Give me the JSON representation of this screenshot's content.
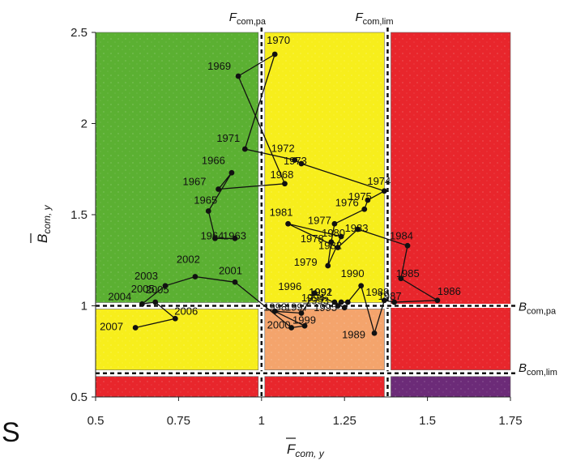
{
  "chart_data": {
    "type": "scatter",
    "title": "",
    "xlabel": {
      "main": "F",
      "sub": "com, y"
    },
    "ylabel": {
      "main": "B",
      "sub": "com, y"
    },
    "xlim": [
      0.5,
      1.75
    ],
    "ylim": [
      0.5,
      2.5
    ],
    "x_ticks": [
      "0.5",
      "0.75",
      "1",
      "1.25",
      "1.5",
      "1.75"
    ],
    "y_ticks": [
      "0.5",
      "1",
      "1.5",
      "2",
      "2.5"
    ],
    "reference_lines": {
      "F_com_pa": {
        "value": 1.0,
        "main": "F",
        "sub": "com,pa"
      },
      "F_com_lim": {
        "value": 1.38,
        "main": "F",
        "sub": "com,lim"
      },
      "B_com_pa": {
        "value": 1.0,
        "main": "B",
        "sub": "com,pa"
      },
      "B_com_lim": {
        "value": 0.63,
        "main": "B",
        "sub": "com,lim"
      }
    },
    "zones": [
      {
        "region": "F<Fpa, B>Bpa",
        "color": "#5bb032"
      },
      {
        "region": "F<Fpa, Blim<B<Bpa",
        "color": "#f7ee1c"
      },
      {
        "region": "F<Fpa, B<Blim",
        "color": "#e8262c"
      },
      {
        "region": "Fpa<F<Flim, B>Bpa",
        "color": "#f7ee1c"
      },
      {
        "region": "Fpa<F<Flim, Blim<B<Bpa",
        "color": "#f4a46c"
      },
      {
        "region": "Fpa<F<Flim, B<Blim",
        "color": "#e8262c"
      },
      {
        "region": "F>Flim, B>Blim",
        "color": "#e8262c"
      },
      {
        "region": "F>Flim, B<Blim",
        "color": "#6c2b78"
      }
    ],
    "series": [
      {
        "points": [
          {
            "year": "1969",
            "x": 0.93,
            "y": 2.26
          },
          {
            "year": "1970",
            "x": 1.04,
            "y": 2.38
          },
          {
            "year": "1971",
            "x": 0.95,
            "y": 1.86
          },
          {
            "year": "1972",
            "x": 1.1,
            "y": 1.8
          },
          {
            "year": "1973",
            "x": 1.12,
            "y": 1.78
          },
          {
            "year": "1974",
            "x": 1.37,
            "y": 1.63
          },
          {
            "year": "1975",
            "x": 1.32,
            "y": 1.58
          },
          {
            "year": "1976",
            "x": 1.31,
            "y": 1.53
          },
          {
            "year": "1977",
            "x": 1.22,
            "y": 1.45
          },
          {
            "year": "1978",
            "x": 1.21,
            "y": 1.35
          },
          {
            "year": "1979",
            "x": 1.2,
            "y": 1.22
          },
          {
            "year": "1980",
            "x": 1.24,
            "y": 1.38
          },
          {
            "year": "1981",
            "x": 1.08,
            "y": 1.45
          },
          {
            "year": "1982",
            "x": 1.23,
            "y": 1.32
          },
          {
            "year": "1983",
            "x": 1.29,
            "y": 1.42
          },
          {
            "year": "1984",
            "x": 1.44,
            "y": 1.33
          },
          {
            "year": "1985",
            "x": 1.42,
            "y": 1.15
          },
          {
            "year": "1986",
            "x": 1.53,
            "y": 1.03
          },
          {
            "year": "1987",
            "x": 1.4,
            "y": 1.02
          },
          {
            "year": "1988",
            "x": 1.37,
            "y": 1.03
          },
          {
            "year": "1989",
            "x": 1.34,
            "y": 0.85
          },
          {
            "year": "1990",
            "x": 1.3,
            "y": 1.11
          },
          {
            "year": "1991",
            "x": 1.26,
            "y": 1.02
          },
          {
            "year": "1992",
            "x": 1.24,
            "y": 1.02
          },
          {
            "year": "1993",
            "x": 1.23,
            "y": 1.0
          },
          {
            "year": "1994",
            "x": 1.22,
            "y": 1.02
          },
          {
            "year": "1995",
            "x": 1.25,
            "y": 0.99
          },
          {
            "year": "1996",
            "x": 1.16,
            "y": 1.07
          },
          {
            "year": "1997",
            "x": 1.12,
            "y": 0.96
          },
          {
            "year": "1998",
            "x": 1.04,
            "y": 0.97
          },
          {
            "year": "1999",
            "x": 1.13,
            "y": 0.89
          },
          {
            "year": "2000",
            "x": 1.09,
            "y": 0.88
          },
          {
            "year": "2001",
            "x": 0.92,
            "y": 1.13
          },
          {
            "year": "2002",
            "x": 0.8,
            "y": 1.16
          },
          {
            "year": "2003",
            "x": 0.71,
            "y": 1.11
          },
          {
            "year": "2004",
            "x": 0.64,
            "y": 1.01
          },
          {
            "year": "2005",
            "x": 0.68,
            "y": 1.02
          },
          {
            "year": "2006",
            "x": 0.74,
            "y": 0.93
          },
          {
            "year": "2007",
            "x": 0.62,
            "y": 0.88
          },
          {
            "year": "1966",
            "x": 0.91,
            "y": 1.73
          },
          {
            "year": "1967",
            "x": 0.87,
            "y": 1.64
          },
          {
            "year": "1968",
            "x": 1.07,
            "y": 1.67
          },
          {
            "year": "1965",
            "x": 0.84,
            "y": 1.52
          },
          {
            "year": "1964",
            "x": 0.86,
            "y": 1.37
          },
          {
            "year": "1963",
            "x": 0.92,
            "y": 1.37
          }
        ],
        "path_order": [
          "1963",
          "1964",
          "1965",
          "1966",
          "1967",
          "1968",
          "1969",
          "1970",
          "1971",
          "1972",
          "1973",
          "1974",
          "1975",
          "1976",
          "1977",
          "1978",
          "1979",
          "1980",
          "1981",
          "1982",
          "1983",
          "1984",
          "1985",
          "1986",
          "1987",
          "1988",
          "1989",
          "1990",
          "1991",
          "1992",
          "1993",
          "1994",
          "1995",
          "1996",
          "1997",
          "1998",
          "1999",
          "2000",
          "2001",
          "2002",
          "2003",
          "2004",
          "2005",
          "2006",
          "2007"
        ]
      }
    ],
    "point_labels": [
      {
        "text": "1970",
        "year": "1970"
      },
      {
        "text": "1969",
        "year": "1969"
      },
      {
        "text": "1971",
        "year": "1971"
      },
      {
        "text": "1966",
        "year": "1966"
      },
      {
        "text": "1972",
        "year": "1972"
      },
      {
        "text": "1973",
        "year": "1973"
      },
      {
        "text": "1968",
        "year": "1968"
      },
      {
        "text": "1967",
        "year": "1967"
      },
      {
        "text": "1974",
        "year": "1974"
      },
      {
        "text": "1976",
        "year": "1976"
      },
      {
        "text": "1975",
        "year": "1975"
      },
      {
        "text": "1965",
        "year": "1965"
      },
      {
        "text": "1981",
        "year": "1981"
      },
      {
        "text": "1977",
        "year": "1977"
      },
      {
        "text": "1983",
        "year": "1983"
      },
      {
        "text": "1964",
        "year": "1964"
      },
      {
        "text": "1963",
        "year": "1963"
      },
      {
        "text": "1980",
        "year": "1980"
      },
      {
        "text": "1982",
        "year": "1982"
      },
      {
        "text": "1984",
        "year": "1984"
      },
      {
        "text": "1978",
        "year": "1978"
      },
      {
        "text": "2002",
        "year": "2002"
      },
      {
        "text": "1979",
        "year": "1979"
      },
      {
        "text": "2003",
        "year": "2003"
      },
      {
        "text": "2004",
        "year": "2004"
      },
      {
        "text": "2001",
        "year": "2001"
      },
      {
        "text": "1985",
        "year": "1985"
      },
      {
        "text": "1990",
        "year": "1990"
      },
      {
        "text": "1996",
        "year": "1996"
      },
      {
        "text": "1986",
        "year": "1986"
      },
      {
        "text": "2005",
        "year": "2005"
      },
      {
        "text": "2005",
        "year": "2005"
      },
      {
        "text": "1991",
        "year": "1991"
      },
      {
        "text": "1992",
        "year": "1992"
      },
      {
        "text": "1988",
        "year": "1988"
      },
      {
        "text": "1987",
        "year": "1987"
      },
      {
        "text": "1994",
        "year": "1994"
      },
      {
        "text": "1993",
        "year": "1993"
      },
      {
        "text": "1995",
        "year": "1995"
      },
      {
        "text": "1998",
        "year": "1998"
      },
      {
        "text": "1997",
        "year": "1997"
      },
      {
        "text": "2007",
        "year": "2007"
      },
      {
        "text": "2006",
        "year": "2006"
      },
      {
        "text": "2000",
        "year": "2000"
      },
      {
        "text": "1999",
        "year": "1999"
      },
      {
        "text": "1989",
        "year": "1989"
      }
    ],
    "grid": false,
    "legend": "none"
  },
  "corner_text": "S"
}
